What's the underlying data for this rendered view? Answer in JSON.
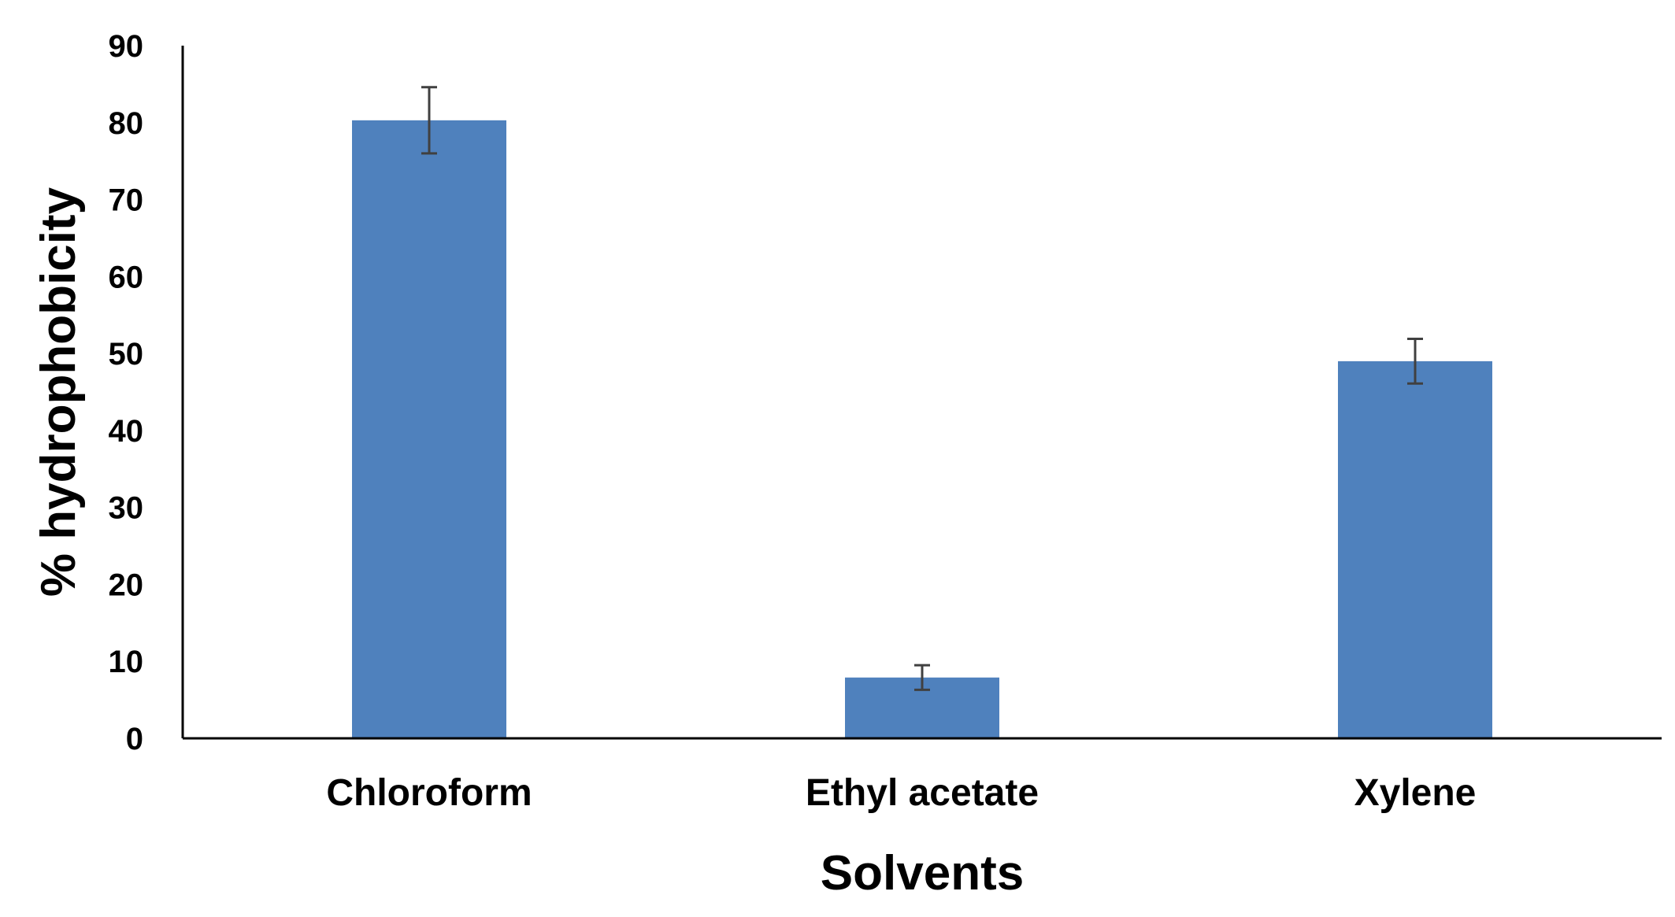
{
  "chart_data": {
    "type": "bar",
    "title": "",
    "xlabel": "Solvents",
    "ylabel": "% hydrophobicity",
    "categories": [
      "Chloroform",
      "Ethyl acetate",
      "Xylene"
    ],
    "values": [
      80.3,
      7.9,
      49.0
    ],
    "errors": [
      4.3,
      1.6,
      2.9
    ],
    "ylim": [
      0,
      90
    ],
    "yticks": [
      0,
      10,
      20,
      30,
      40,
      50,
      60,
      70,
      80,
      90
    ],
    "grid": false,
    "legend": "none",
    "bar_color": "#4F81BD",
    "error_color": "#404040",
    "axis_color": "#000000"
  }
}
